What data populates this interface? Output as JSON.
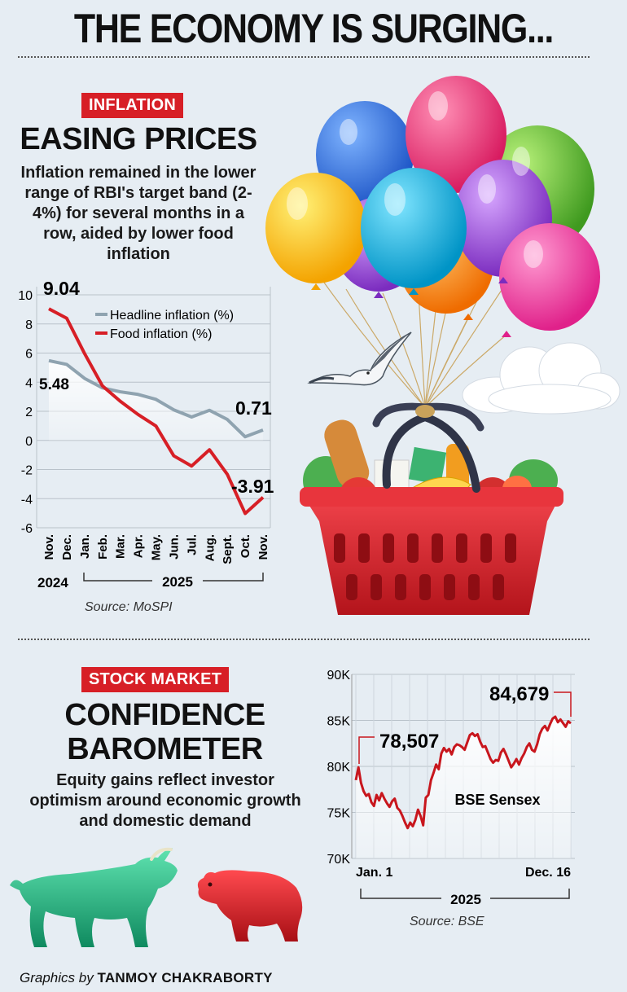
{
  "header": {
    "title": "THE ECONOMY IS SURGING..."
  },
  "inflation": {
    "tag": "INFLATION",
    "title": "EASING PRICES",
    "description": "Inflation remained in the lower range of RBI's target band (2-4%) for several months in a row, aided by lower food inflation",
    "source": "Source: MoSPI"
  },
  "stock": {
    "tag": "STOCK MARKET",
    "title_line1": "CONFIDENCE",
    "title_line2": "BAROMETER",
    "description": "Equity gains reflect investor optimism around economic growth and domestic demand",
    "source": "Source: BSE"
  },
  "credit": {
    "prefix": "Graphics by",
    "name": "TANMOY CHAKRABORTY"
  },
  "colors": {
    "accent_red": "#d71f26",
    "headline_line": "#8fa3b0",
    "food_line": "#d71f26",
    "sensex_line": "#c8161d"
  },
  "icons": [
    "balloons-illustration",
    "grocery-basket-illustration",
    "seagull-illustration",
    "cloud-illustration",
    "bull-illustration",
    "bear-illustration"
  ],
  "chart_data": [
    {
      "type": "line",
      "categories": [
        "Nov.",
        "Dec.",
        "Jan.",
        "Feb.",
        "Mar.",
        "Apr.",
        "May.",
        "Jun.",
        "Jul.",
        "Aug.",
        "Sept.",
        "Oct.",
        "Nov."
      ],
      "year_labels": [
        "2024",
        "2025"
      ],
      "series": [
        {
          "name": "Headline inflation (%)",
          "values": [
            5.48,
            5.22,
            4.26,
            3.61,
            3.34,
            3.16,
            2.82,
            2.1,
            1.61,
            2.07,
            1.44,
            0.25,
            0.71
          ]
        },
        {
          "name": "Food inflation (%)",
          "values": [
            9.04,
            8.39,
            5.97,
            3.75,
            2.69,
            1.78,
            0.99,
            -1.06,
            -1.76,
            -0.64,
            -2.33,
            -5.02,
            -3.91
          ]
        }
      ],
      "data_labels": {
        "headline_start": "5.48",
        "headline_end": "0.71",
        "food_start": "9.04",
        "food_end": "-3.91"
      },
      "yticks": [
        "10",
        "8",
        "6",
        "4",
        "2",
        "0",
        "-2",
        "-4",
        "-6"
      ],
      "ylim": [
        -6,
        10
      ],
      "legend": "top-right",
      "grid": true
    },
    {
      "type": "line",
      "xticks": [
        "Jan. 1",
        "Dec. 16"
      ],
      "year_label": "2025",
      "series": [
        {
          "name": "BSE Sensex",
          "values": [
            78507,
            79900,
            78200,
            77300,
            76800,
            77000,
            76100,
            75700,
            76900,
            76300,
            77100,
            76500,
            76000,
            75600,
            76200,
            76500,
            75500,
            75200,
            74600,
            73900,
            73300,
            73900,
            73500,
            74200,
            75300,
            74600,
            73600,
            76600,
            76900,
            78500,
            79300,
            80200,
            79700,
            81400,
            82000,
            81600,
            81900,
            81300,
            82100,
            82400,
            82300,
            82100,
            81800,
            82600,
            83400,
            83600,
            83300,
            83500,
            82700,
            82100,
            82200,
            81500,
            80800,
            80400,
            80700,
            80600,
            81500,
            81900,
            81300,
            80600,
            79900,
            80300,
            80800,
            80200,
            80900,
            81400,
            82100,
            82500,
            81800,
            81600,
            82400,
            83500,
            84100,
            84400,
            83900,
            84600,
            85200,
            85400,
            84800,
            85100,
            84700,
            84300,
            84900,
            84679
          ]
        }
      ],
      "data_labels": {
        "start": "78,507",
        "end": "84,679"
      },
      "yticks": [
        "90K",
        "85K",
        "80K",
        "75K",
        "70K"
      ],
      "ylim": [
        70000,
        90000
      ],
      "grid": true
    }
  ]
}
